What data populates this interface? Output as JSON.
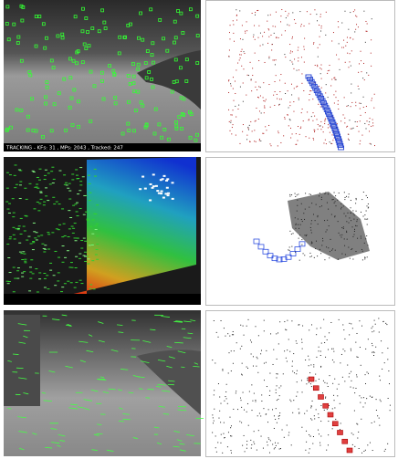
{
  "panels": {
    "tracking_status": "TRACKING  - KFs: 31 , MPs: 2043 , Tracked: 247"
  }
}
